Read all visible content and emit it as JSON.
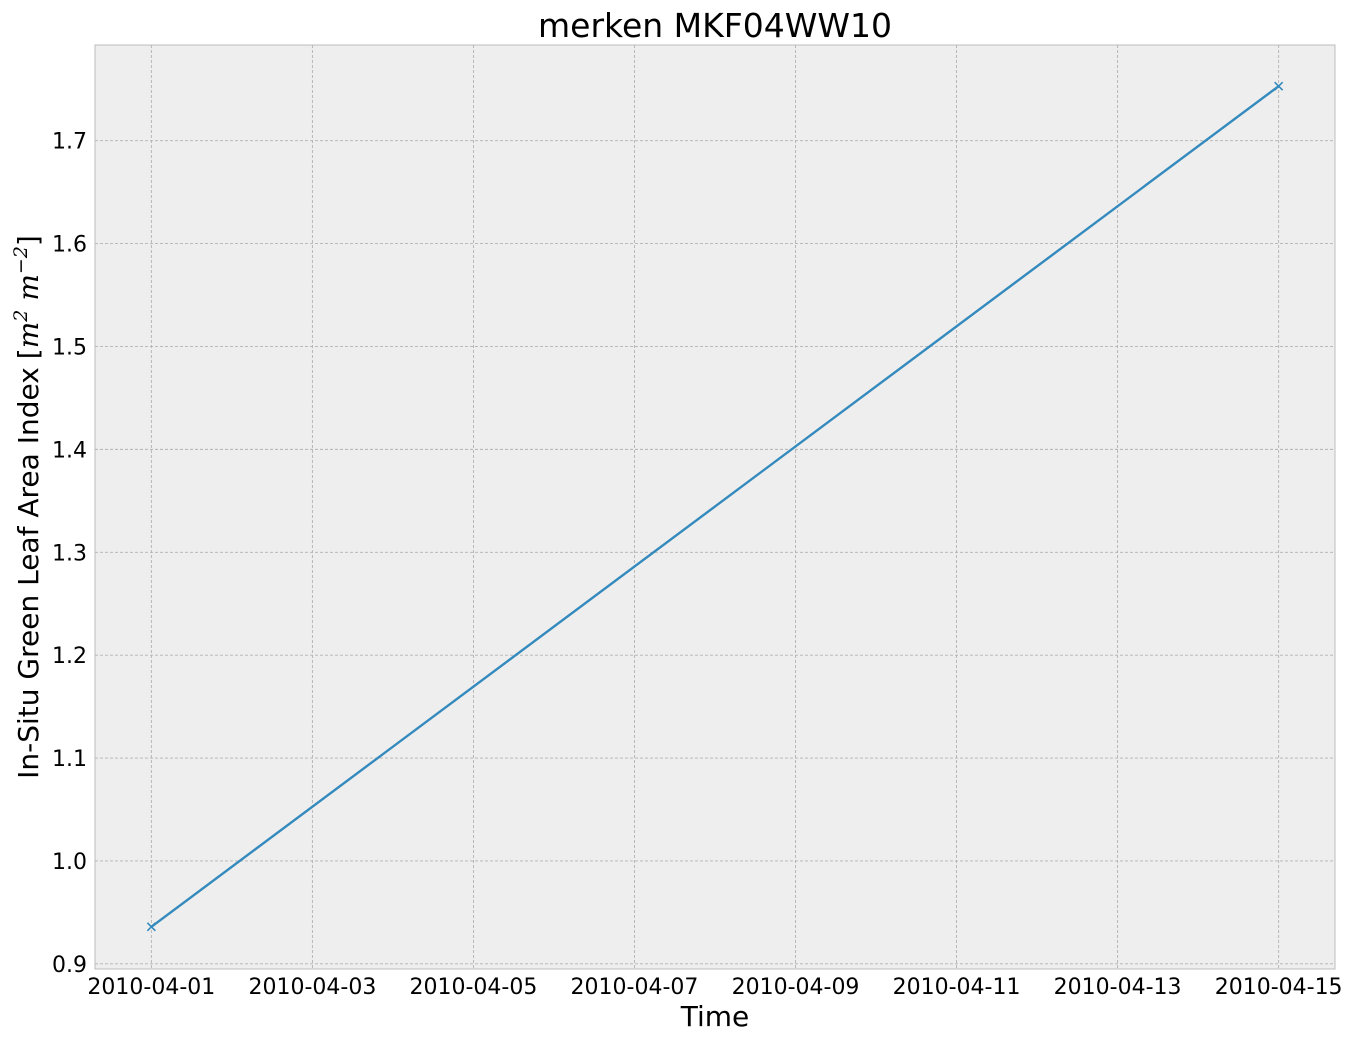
{
  "chart_data": {
    "type": "line",
    "title": "merken MKF04WW10",
    "xlabel": "Time",
    "ylabel": {
      "text": "In-Situ Green Leaf Area Index",
      "unit_base1": "m",
      "unit_exp1": "2",
      "unit_base2": "m",
      "unit_exp2": "−2"
    },
    "x_ticks": [
      "2010-04-01",
      "2010-04-03",
      "2010-04-05",
      "2010-04-07",
      "2010-04-09",
      "2010-04-11",
      "2010-04-13",
      "2010-04-15"
    ],
    "y_ticks": [
      "0.9",
      "1.0",
      "1.1",
      "1.2",
      "1.3",
      "1.4",
      "1.5",
      "1.6",
      "1.7"
    ],
    "xlim": [
      "2010-03-31T07:12",
      "2010-04-15T16:48"
    ],
    "ylim": [
      0.895,
      1.793
    ],
    "grid": true,
    "marker": "x",
    "colors": {
      "line": "#348abd",
      "plot_background": "#eeeeee",
      "grid": "#b2b2b2",
      "frame": "#bcbcbc"
    },
    "series": [
      {
        "x": [
          "2010-04-01",
          "2010-04-15"
        ],
        "y": [
          0.936,
          1.753
        ]
      }
    ]
  }
}
